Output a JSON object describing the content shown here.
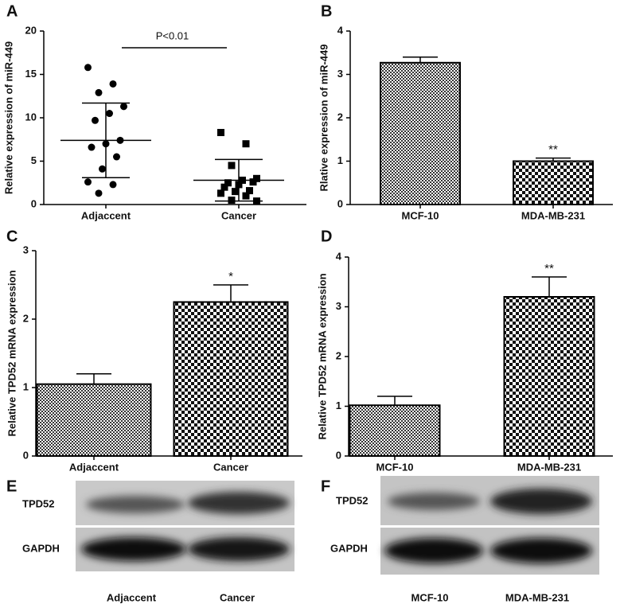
{
  "chart_data": [
    {
      "type": "dot",
      "label": "A",
      "ylabel": "Relative expression of miR-449",
      "categories": [
        "Adjaccent",
        "Cancer"
      ],
      "values": [
        [
          15.8,
          13.9,
          12.9,
          11.3,
          10.5,
          9.7,
          7.4,
          7.0,
          6.6,
          5.5,
          4.1,
          2.6,
          2.3,
          1.3
        ],
        [
          8.3,
          7.0,
          4.5,
          3.0,
          2.8,
          2.5,
          2.6,
          2.3,
          2.0,
          1.6,
          1.5,
          1.3,
          1.0,
          0.5,
          0.4
        ]
      ],
      "means": [
        7.4,
        2.8
      ],
      "sd": [
        4.3,
        2.4
      ],
      "annotation": "P<0.01",
      "ylim": [
        0,
        20
      ],
      "yticks": [
        0,
        5,
        10,
        15,
        20
      ]
    },
    {
      "type": "bar",
      "label": "B",
      "ylabel": "Rlative expression of miR-449",
      "categories": [
        "MCF-10",
        "MDA-MB-231"
      ],
      "values": [
        3.27,
        1.0
      ],
      "errors": [
        0.13,
        0.07
      ],
      "significance": [
        null,
        "**"
      ],
      "ylim": [
        0,
        4
      ],
      "yticks": [
        0,
        1,
        2,
        3,
        4
      ]
    },
    {
      "type": "bar",
      "label": "C",
      "ylabel": "Relative TPD52 mRNA expression",
      "categories": [
        "Adjaccent",
        "Cancer"
      ],
      "values": [
        1.05,
        2.25
      ],
      "errors": [
        0.15,
        0.25
      ],
      "significance": [
        null,
        "*"
      ],
      "ylim": [
        0,
        3
      ],
      "yticks": [
        0,
        1,
        2,
        3
      ]
    },
    {
      "type": "bar",
      "label": "D",
      "ylabel": "Relative TPD52 mRNA expression",
      "categories": [
        "MCF-10",
        "MDA-MB-231"
      ],
      "values": [
        1.02,
        3.2
      ],
      "errors": [
        0.18,
        0.4
      ],
      "significance": [
        null,
        "**"
      ],
      "ylim": [
        0,
        4
      ],
      "yticks": [
        0,
        1,
        2,
        3,
        4
      ]
    }
  ],
  "blots": [
    {
      "label": "E",
      "rows": [
        "TPD52",
        "GAPDH"
      ],
      "lanes": [
        "Adjaccent",
        "Cancer"
      ]
    },
    {
      "label": "F",
      "rows": [
        "TPD52",
        "GAPDH"
      ],
      "lanes": [
        "MCF-10",
        "MDA-MB-231"
      ]
    }
  ]
}
